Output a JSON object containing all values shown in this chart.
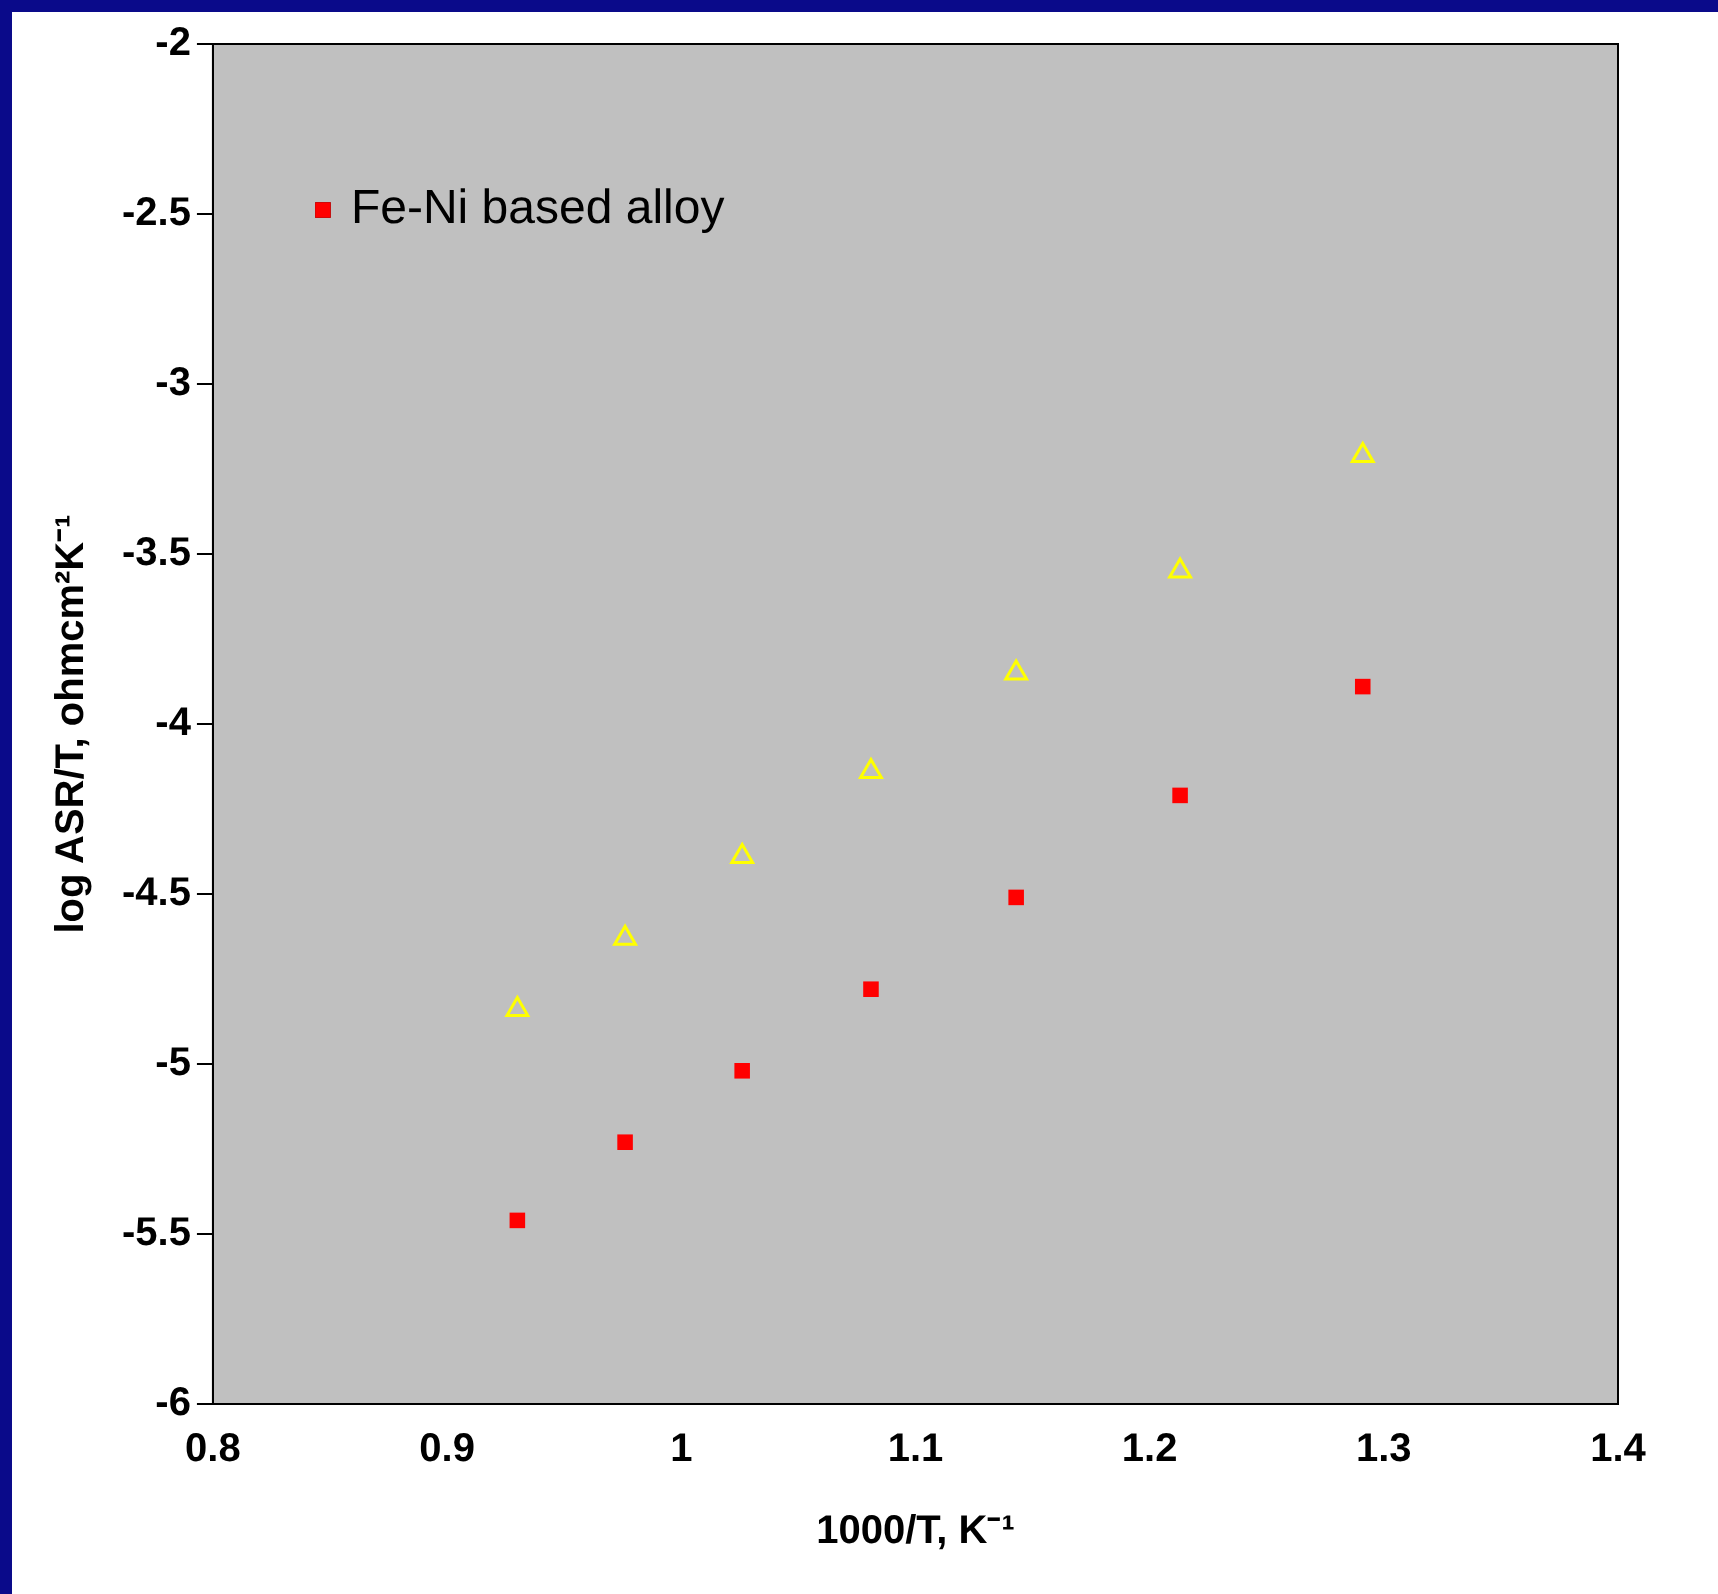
{
  "chart_data": {
    "type": "scatter",
    "xlabel": "1000/T, K⁻¹",
    "ylabel": "log ASR/T, ohmcm²K⁻¹",
    "xlim": [
      0.8,
      1.4
    ],
    "xticks": [
      0.8,
      0.9,
      1,
      1.1,
      1.2,
      1.3,
      1.4
    ],
    "ylim": [
      -6,
      -2
    ],
    "yticks": [
      -6,
      -5.5,
      -5,
      -4.5,
      -4,
      -3.5,
      -3,
      -2.5,
      -2
    ],
    "grid": false,
    "legend": "top left",
    "series": [
      {
        "name": "Fe-Ni based alloy",
        "color": "#ff0000",
        "marker": "square",
        "x": [
          0.93,
          0.976,
          1.026,
          1.081,
          1.143,
          1.213,
          1.291
        ],
        "values": [
          -5.46,
          -5.23,
          -5.02,
          -4.78,
          -4.51,
          -4.21,
          -3.89
        ]
      },
      {
        "color": "#ffff00",
        "marker": "triangle",
        "x": [
          0.93,
          0.976,
          1.026,
          1.081,
          1.143,
          1.213,
          1.291
        ],
        "values": [
          -4.84,
          -4.63,
          -4.39,
          -4.14,
          -3.85,
          -3.55,
          -3.21
        ]
      }
    ]
  }
}
